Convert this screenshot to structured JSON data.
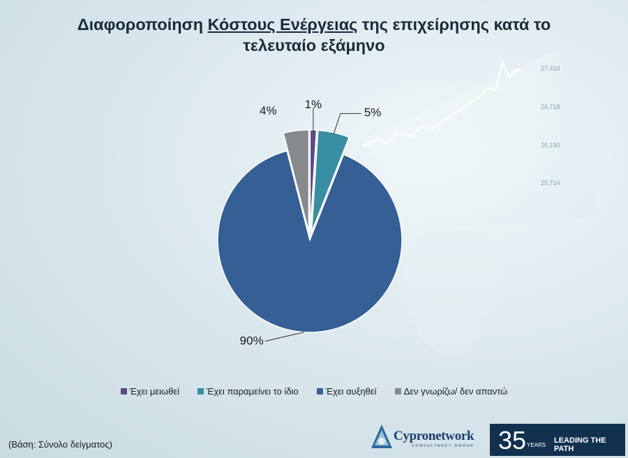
{
  "title": {
    "part1": "Διαφοροποίηση ",
    "underlined": "Κόστους Ενέργειας",
    "part2": " της επιχείρησης κατά το",
    "line2": "τελευταίο εξάμηνο"
  },
  "chart_data": {
    "type": "pie",
    "title": "Διαφοροποίηση Κόστους Ενέργειας της επιχείρησης κατά το τελευταίο εξάμηνο",
    "slices": [
      {
        "label": "Έχει μειωθεί",
        "value": 1,
        "display": "1%",
        "color": "#5b4b8a"
      },
      {
        "label": "Έχει παραμείνει το ίδιο",
        "value": 5,
        "display": "5%",
        "color": "#3a8ea3"
      },
      {
        "label": "Έχει αυξηθεί",
        "value": 90,
        "display": "90%",
        "color": "#355f95"
      },
      {
        "label": "Δεν γνωρίζω/ δεν απαντώ",
        "value": 4,
        "display": "4%",
        "color": "#878a8d"
      }
    ],
    "legend_position": "bottom"
  },
  "background_numbers": [
    "27,410",
    "26,718",
    "26,190",
    "25,714"
  ],
  "footnote": "(Βάση: Σύνολο δείγματος)",
  "logo": {
    "name": "Cypronetwork",
    "sub": "CONSULTANCY GROUP"
  },
  "badge": {
    "number": "35",
    "years": "YEARS",
    "tagline": "LEADING THE PATH"
  }
}
